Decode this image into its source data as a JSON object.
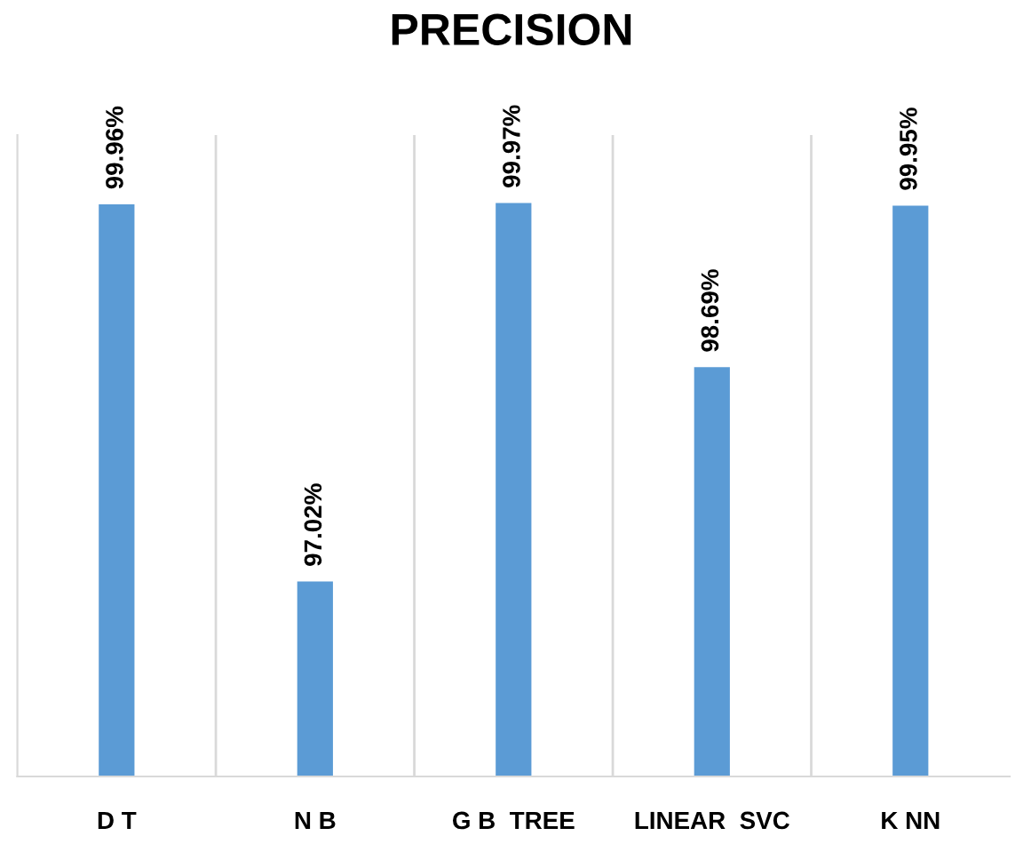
{
  "chart_data": {
    "type": "bar",
    "title": "PRECISION",
    "categories": [
      "D T",
      "N B",
      "G B  TREE",
      "LINEAR  SVC",
      "K NN"
    ],
    "values": [
      99.96,
      97.02,
      99.97,
      98.69,
      99.95
    ],
    "value_labels": [
      "99.96%",
      "97.02%",
      "99.97%",
      "98.69%",
      "99.95%"
    ],
    "color": "#5b9bd5",
    "ylim": [
      95.5,
      100.5
    ],
    "tick_labels": "x",
    "grid": "x"
  }
}
